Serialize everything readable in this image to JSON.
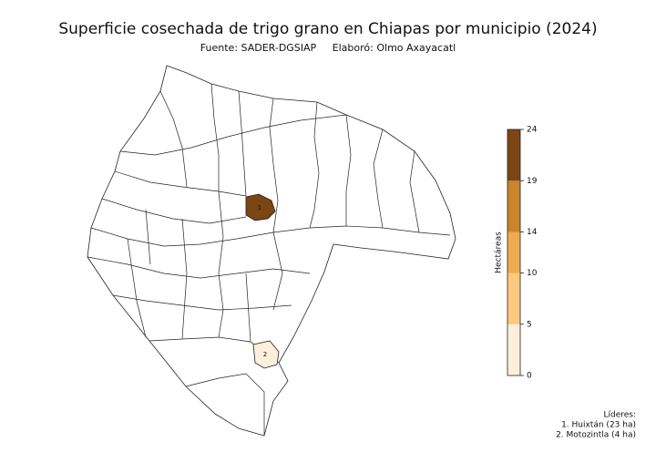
{
  "map": {
    "title": "Superficie cosechada de trigo grano en Chiapas por municipio (2024)",
    "subtitle": "Fuente: SADER-DGSIAP     Elaboró: Olmo Axayacatl",
    "colorbar": {
      "label": "Hectáreas",
      "lim": [
        0,
        24
      ],
      "ticks": [
        0,
        5,
        10,
        14,
        19,
        24
      ],
      "colors": [
        "#fcefdc",
        "#fcc97f",
        "#eeab52",
        "#c9842c",
        "#7b4514"
      ]
    },
    "leaders": {
      "title": "Líderes:",
      "items": [
        {
          "marker": "1",
          "label": "1. Huixtán (23 ha)",
          "value": 23
        },
        {
          "marker": "2",
          "label": "2. Motozintla (4 ha)",
          "value": 4
        }
      ]
    }
  }
}
